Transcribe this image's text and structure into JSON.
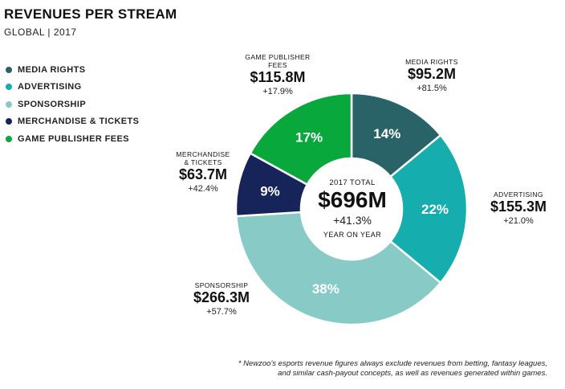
{
  "header": {
    "title": "REVENUES PER STREAM",
    "subtitle": "GLOBAL | 2017"
  },
  "chart_data": {
    "type": "pie",
    "title": "REVENUES PER STREAM",
    "subtitle": "GLOBAL | 2017",
    "categories": [
      "MEDIA RIGHTS",
      "ADVERTISING",
      "SPONSORSHIP",
      "MERCHANDISE & TICKETS",
      "GAME PUBLISHER FEES"
    ],
    "values": [
      14,
      22,
      38,
      9,
      17
    ],
    "value_labels": [
      "14%",
      "22%",
      "38%",
      "9%",
      "17%"
    ],
    "colors": [
      "#2a6367",
      "#15adad",
      "#88cbc6",
      "#16245a",
      "#08a83c"
    ],
    "revenues": [
      "$95.2M",
      "$155.3M",
      "$266.3M",
      "$63.7M",
      "$115.8M"
    ],
    "growth": [
      "+81.5%",
      "+21.0%",
      "+57.7%",
      "+42.4%",
      "+17.9%"
    ],
    "legend_position": "left",
    "donut": true
  },
  "legend": [
    {
      "label": "MEDIA RIGHTS",
      "color": "#2a6367"
    },
    {
      "label": "ADVERTISING",
      "color": "#15adad"
    },
    {
      "label": "SPONSORSHIP",
      "color": "#88cbc6"
    },
    {
      "label": "MERCHANDISE & TICKETS",
      "color": "#16245a"
    },
    {
      "label": "GAME PUBLISHER FEES",
      "color": "#08a83c"
    }
  ],
  "segments": [
    {
      "name": "MEDIA RIGHTS",
      "value": "$95.2M",
      "growth": "+81.5%"
    },
    {
      "name": "ADVERTISING",
      "value": "$155.3M",
      "growth": "+21.0%"
    },
    {
      "name": "SPONSORSHIP",
      "value": "$266.3M",
      "growth": "+57.7%"
    },
    {
      "name_line1": "MERCHANDISE",
      "name_line2": "& TICKETS",
      "value": "$63.7M",
      "growth": "+42.4%"
    },
    {
      "name_line1": "GAME PUBLISHER",
      "name_line2": "FEES",
      "value": "$115.8M",
      "growth": "+17.9%"
    }
  ],
  "center": {
    "label": "2017 TOTAL",
    "value": "$696M",
    "growth": "+41.3%",
    "sub": "YEAR ON YEAR"
  },
  "footnote": {
    "line1": "* Newzoo's esports revenue figures always exclude revenues from betting, fantasy leagues,",
    "line2": "and similar cash-payout concepts, as well as revenues generated within games."
  }
}
